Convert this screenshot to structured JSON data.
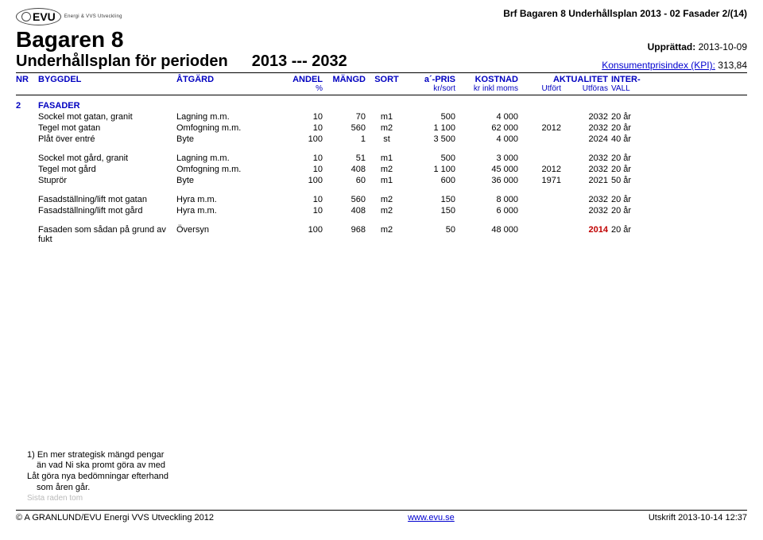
{
  "doc": {
    "top_right": "Brf Bagaren 8 Underhållsplan 2013 - 02 Fasader  2/(14)",
    "logo_text": "EVU",
    "logo_sub": "Energi & VVS Utveckling",
    "main_title": "Bagaren 8",
    "subtitle": "Underhållsplan för perioden",
    "period": "2013  ---  2032",
    "upprattad_label": "Upprättad:",
    "upprattad_value": "2013-10-09",
    "kpi_label": "Konsumentprisindex (KPI):",
    "kpi_value": "313,84"
  },
  "columns": {
    "c0": "NR",
    "c1": "BYGGDEL",
    "c2": "ÅTGÄRD",
    "c3": "ANDEL",
    "c3s": "%",
    "c4": "MÄNGD",
    "c5": "SORT",
    "c6": "a´-PRIS",
    "c6s": "kr/sort",
    "c7": "KOSTNAD",
    "c7s": "kr inkl moms",
    "c8a": "AKTUALITET",
    "c8s": "Utfört",
    "c9s": "Utföras",
    "c10": "INTER-",
    "c10s": "VALL"
  },
  "section": {
    "nr": "2",
    "title": "FASADER"
  },
  "rows": [
    {
      "b": "Sockel mot gatan, granit",
      "a": "Lagning m.m.",
      "andel": "10",
      "mangd": "70",
      "sort": "m1",
      "apris": "500",
      "kost": "4 000",
      "utfort": "",
      "utforas": "2032",
      "vall": "20 år"
    },
    {
      "b": "Tegel mot gatan",
      "a": "Omfogning m.m.",
      "andel": "10",
      "mangd": "560",
      "sort": "m2",
      "apris": "1 100",
      "kost": "62 000",
      "utfort": "2012",
      "utforas": "2032",
      "vall": "20 år"
    },
    {
      "b": "Plåt över entré",
      "a": "Byte",
      "andel": "100",
      "mangd": "1",
      "sort": "st",
      "apris": "3 500",
      "kost": "4 000",
      "utfort": "",
      "utforas": "2024",
      "vall": "40 år"
    },
    {
      "gap": true
    },
    {
      "b": "Sockel mot gård, granit",
      "a": "Lagning m.m.",
      "andel": "10",
      "mangd": "51",
      "sort": "m1",
      "apris": "500",
      "kost": "3 000",
      "utfort": "",
      "utforas": "2032",
      "vall": "20 år"
    },
    {
      "b": "Tegel mot gård",
      "a": "Omfogning m.m.",
      "andel": "10",
      "mangd": "408",
      "sort": "m2",
      "apris": "1 100",
      "kost": "45 000",
      "utfort": "2012",
      "utforas": "2032",
      "vall": "20 år"
    },
    {
      "b": "Stuprör",
      "a": "Byte",
      "andel": "100",
      "mangd": "60",
      "sort": "m1",
      "apris": "600",
      "kost": "36 000",
      "utfort": "1971",
      "utforas": "2021",
      "vall": "50 år"
    },
    {
      "gap": true
    },
    {
      "b": "Fasadställning/lift mot gatan",
      "a": "Hyra m.m.",
      "andel": "10",
      "mangd": "560",
      "sort": "m2",
      "apris": "150",
      "kost": "8 000",
      "utfort": "",
      "utforas": "2032",
      "vall": "20 år"
    },
    {
      "b": "Fasadställning/lift mot gård",
      "a": "Hyra m.m.",
      "andel": "10",
      "mangd": "408",
      "sort": "m2",
      "apris": "150",
      "kost": "6 000",
      "utfort": "",
      "utforas": "2032",
      "vall": "20 år"
    },
    {
      "gap": true
    },
    {
      "b": "Fasaden som sådan på grund av fukt",
      "a": "Översyn",
      "andel": "100",
      "mangd": "968",
      "sort": "m2",
      "apris": "50",
      "kost": "48 000",
      "utfort": "",
      "utforas": "2014",
      "utforas_red": true,
      "vall": "20 år"
    }
  ],
  "footnote": {
    "l1": "1) En mer strategisk mängd pengar",
    "l2": "än vad Ni ska promt göra av med",
    "l3": "Låt göra nya bedömningar efterhand",
    "l4": "som åren går.",
    "faded": "Sista raden tom"
  },
  "footer": {
    "left": "© A GRANLUND/EVU Energi VVS Utveckling 2012",
    "center": "www.evu.se",
    "right": "Utskrift 2013-10-14 12:37"
  },
  "colors": {
    "header_text": "#0000c0",
    "link": "#0000d0",
    "alert": "#c00000"
  }
}
